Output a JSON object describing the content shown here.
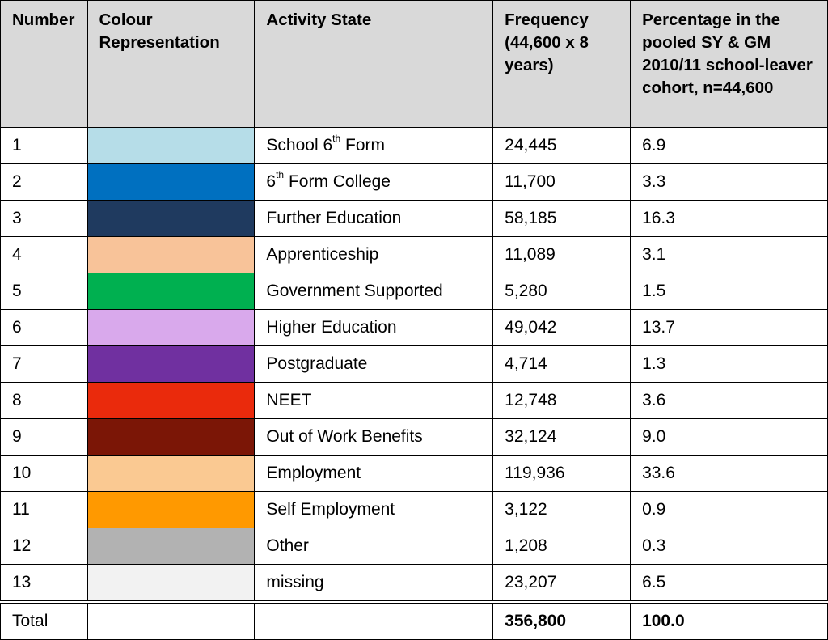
{
  "headers": {
    "number": "Number",
    "colour": "Colour Representation",
    "activity": "Activity State",
    "frequency": "Frequency (44,600 x 8 years)",
    "percentage": "Percentage in the pooled SY & GM 2010/11 school-leaver cohort, n=44,600"
  },
  "rows": [
    {
      "number": "1",
      "colour": "#b6dde8",
      "activity_pre": "School 6",
      "activity_sup": "th",
      "activity_post": " Form",
      "frequency": "24,445",
      "percentage": "6.9"
    },
    {
      "number": "2",
      "colour": "#0070c0",
      "activity_pre": "6",
      "activity_sup": "th",
      "activity_post": " Form College",
      "frequency": "11,700",
      "percentage": "3.3"
    },
    {
      "number": "3",
      "colour": "#1f3a5f",
      "activity": "Further Education",
      "frequency": "58,185",
      "percentage": "16.3"
    },
    {
      "number": "4",
      "colour": "#f8c399",
      "activity": "Apprenticeship",
      "frequency": "11,089",
      "percentage": "3.1"
    },
    {
      "number": "5",
      "colour": "#00b050",
      "activity": "Government Supported",
      "frequency": "5,280",
      "percentage": "1.5"
    },
    {
      "number": "6",
      "colour": "#d9a9ec",
      "activity": "Higher Education",
      "frequency": "49,042",
      "percentage": "13.7"
    },
    {
      "number": "7",
      "colour": "#7030a0",
      "activity": "Postgraduate",
      "frequency": "4,714",
      "percentage": "1.3"
    },
    {
      "number": "8",
      "colour": "#ea2a0c",
      "activity": "NEET",
      "frequency": "12,748",
      "percentage": "3.6"
    },
    {
      "number": "9",
      "colour": "#7b1606",
      "activity": "Out of Work Benefits",
      "frequency": "32,124",
      "percentage": "9.0"
    },
    {
      "number": "10",
      "colour": "#fac992",
      "activity": "Employment",
      "frequency": "119,936",
      "percentage": "33.6"
    },
    {
      "number": "11",
      "colour": "#ff9900",
      "activity": "Self Employment",
      "frequency": "3,122",
      "percentage": "0.9"
    },
    {
      "number": "12",
      "colour": "#b2b2b2",
      "activity": "Other",
      "frequency": "1,208",
      "percentage": "0.3"
    },
    {
      "number": "13",
      "colour": "#f2f2f2",
      "activity": "missing",
      "frequency": "23,207",
      "percentage": "6.5"
    }
  ],
  "total": {
    "label": "Total",
    "frequency": "356,800",
    "percentage": "100.0"
  }
}
